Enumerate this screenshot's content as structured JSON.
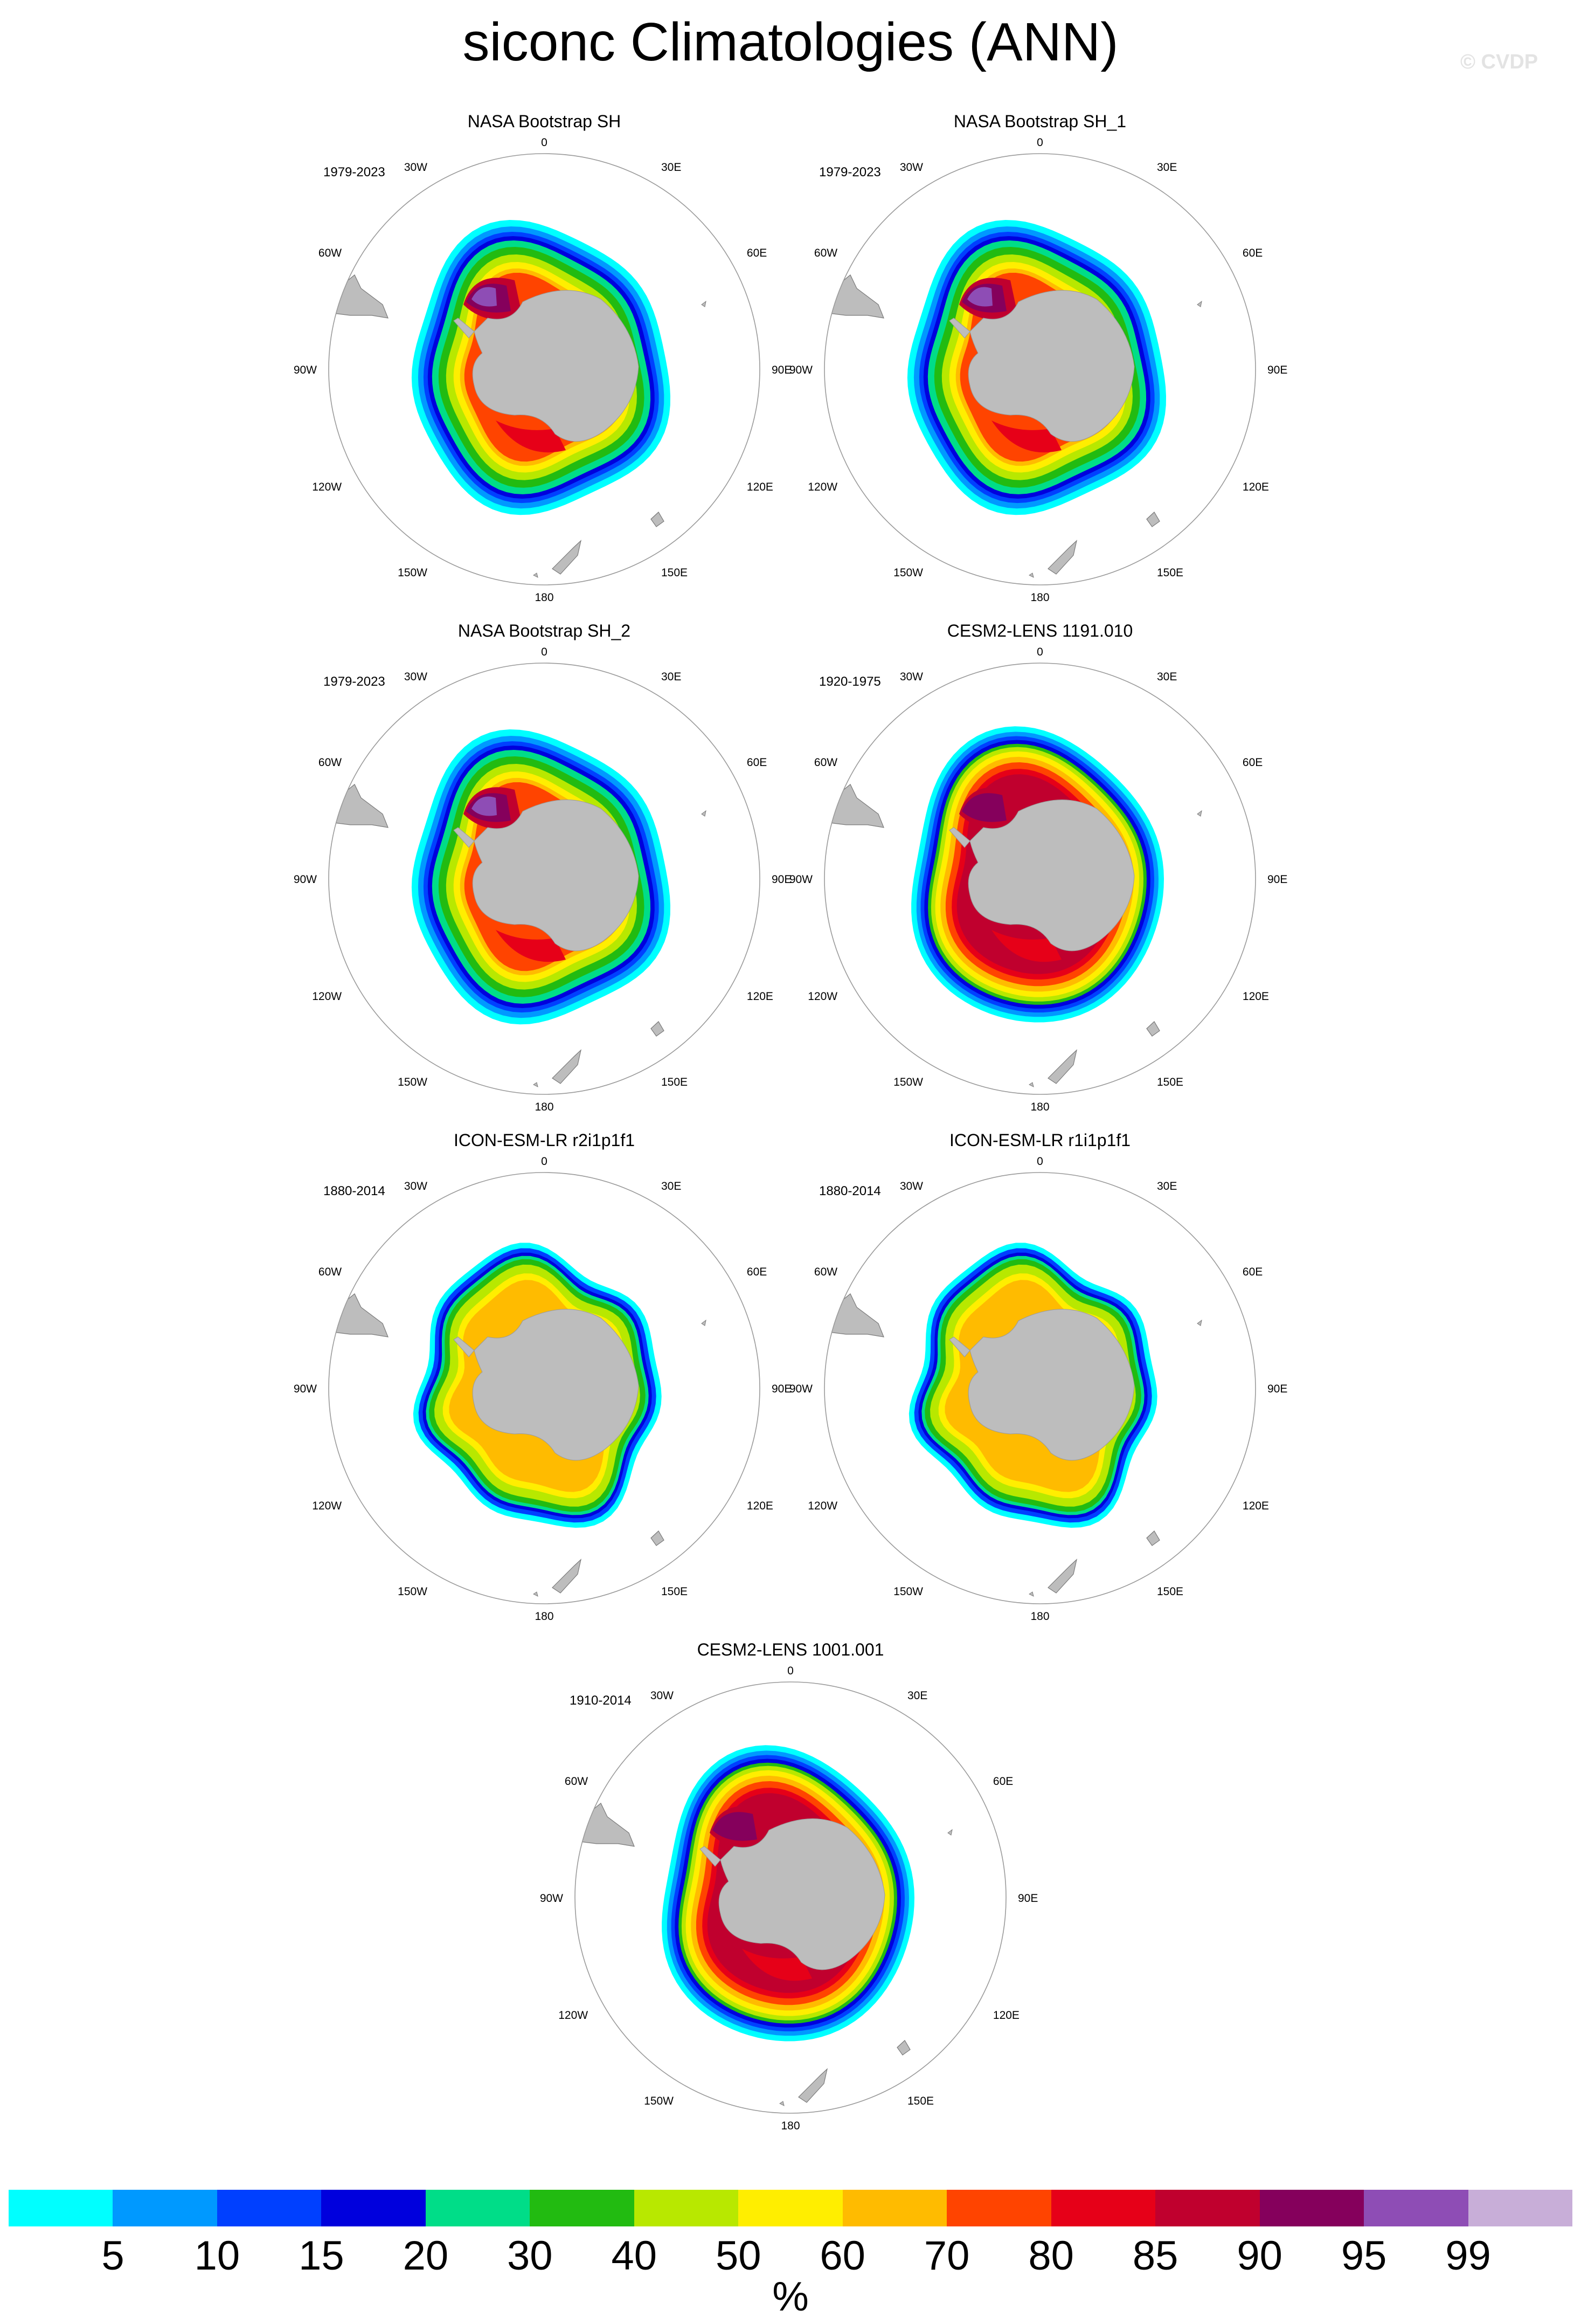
{
  "title": "siconc Climatologies (ANN)",
  "watermark": "© CVDP",
  "map": {
    "projection": "south-polar-stereographic",
    "lon_labels": [
      "0",
      "30E",
      "60E",
      "90E",
      "120E",
      "150E",
      "180",
      "150W",
      "120W",
      "90W",
      "60W",
      "30W"
    ],
    "land_color": "#bdbdbd"
  },
  "panels": [
    {
      "title": "NASA Bootstrap SH",
      "period": "1979-2023",
      "style": "obs"
    },
    {
      "title": "NASA Bootstrap SH_1",
      "period": "1979-2023",
      "style": "obs"
    },
    {
      "title": "NASA Bootstrap SH_2",
      "period": "1979-2023",
      "style": "obs"
    },
    {
      "title": "CESM2-LENS 1191.010",
      "period": "1920-1975",
      "style": "cesm"
    },
    {
      "title": "ICON-ESM-LR r2i1p1f1",
      "period": "1880-2014",
      "style": "icon"
    },
    {
      "title": "ICON-ESM-LR r1i1p1f1",
      "period": "1880-2014",
      "style": "icon"
    },
    {
      "title": "CESM2-LENS 1001.001",
      "period": "1910-2014",
      "style": "cesm"
    }
  ],
  "colorbar": {
    "colors": [
      "#00ffff",
      "#0099ff",
      "#0040ff",
      "#0000dd",
      "#00dd88",
      "#22bb11",
      "#b8e800",
      "#ffee00",
      "#ffbb00",
      "#ff4400",
      "#e60018",
      "#c0002e",
      "#85005c",
      "#8e4db5",
      "#c8aed8"
    ],
    "labels": [
      "5",
      "10",
      "15",
      "20",
      "30",
      "40",
      "50",
      "60",
      "70",
      "80",
      "85",
      "90",
      "95",
      "99"
    ],
    "units": "%"
  }
}
